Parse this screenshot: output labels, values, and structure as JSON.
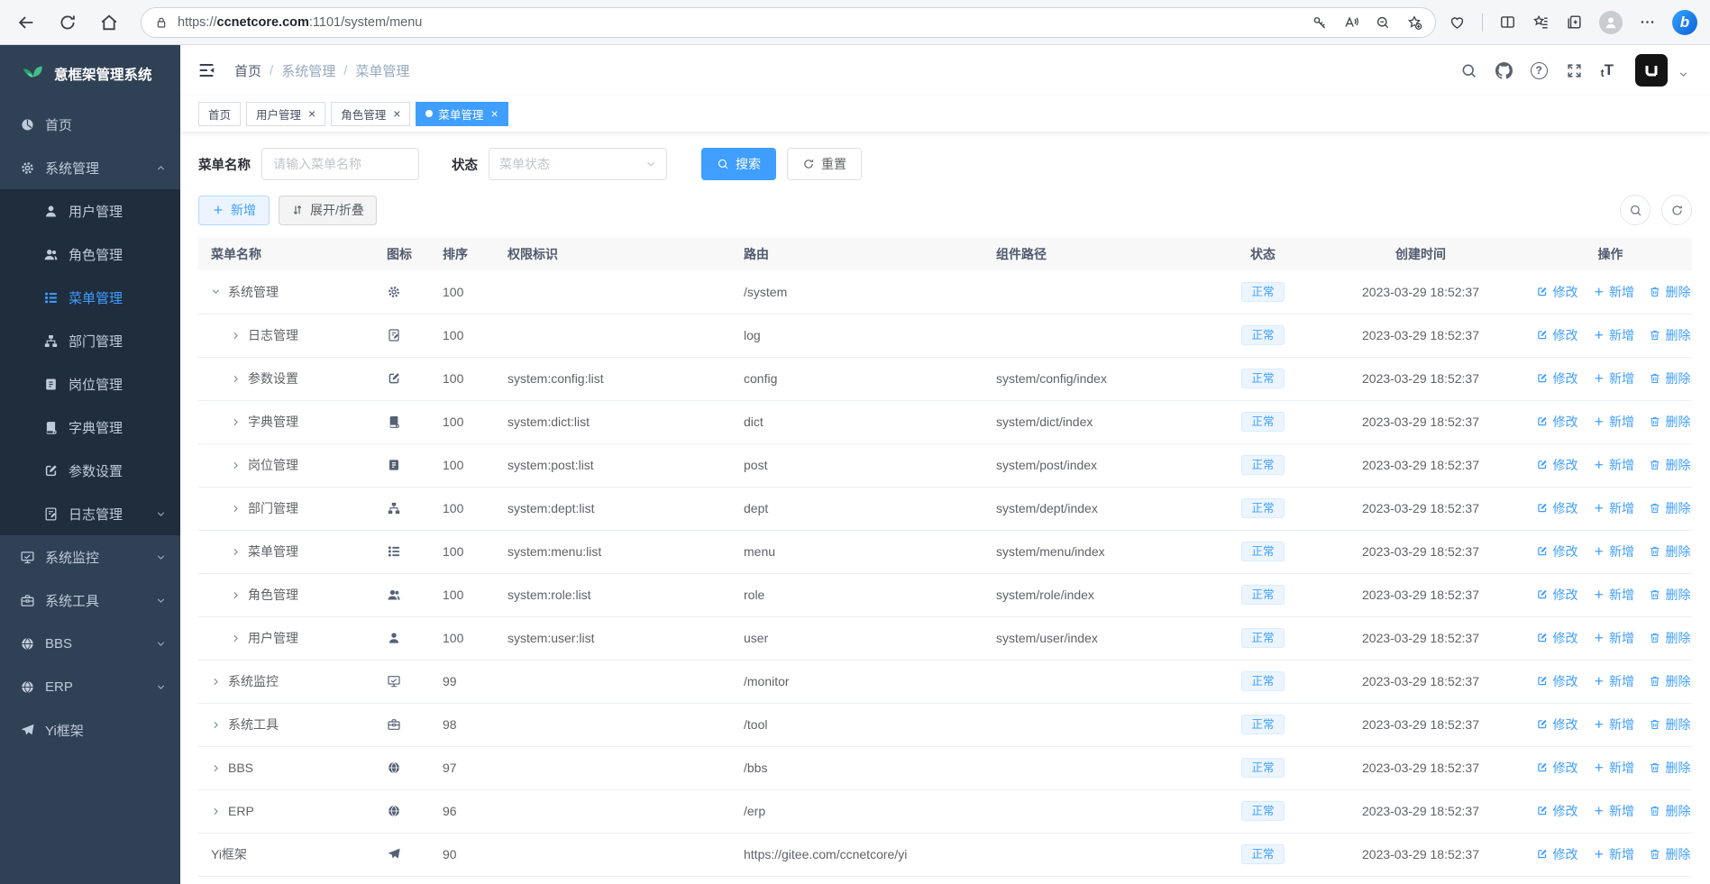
{
  "browser": {
    "url": "https://ccnetcore.com:1101/system/menu",
    "url_scheme": "https://",
    "url_host": "ccnetcore.com",
    "url_path": ":1101/system/menu"
  },
  "sidebar": {
    "logo_title": "意框架管理系统",
    "items": [
      {
        "label": "首页",
        "icon": "dashboard",
        "type": "root"
      },
      {
        "label": "系统管理",
        "icon": "gear",
        "type": "root",
        "chevron": "up"
      },
      {
        "label": "用户管理",
        "icon": "user",
        "type": "sub"
      },
      {
        "label": "角色管理",
        "icon": "users",
        "type": "sub"
      },
      {
        "label": "菜单管理",
        "icon": "menu",
        "type": "sub",
        "active": true
      },
      {
        "label": "部门管理",
        "icon": "tree",
        "type": "sub"
      },
      {
        "label": "岗位管理",
        "icon": "badge",
        "type": "sub"
      },
      {
        "label": "字典管理",
        "icon": "dict",
        "type": "sub"
      },
      {
        "label": "参数设置",
        "icon": "edit",
        "type": "sub"
      },
      {
        "label": "日志管理",
        "icon": "log",
        "type": "sub",
        "chevron": "down"
      },
      {
        "label": "系统监控",
        "icon": "monitor",
        "type": "root",
        "chevron": "down"
      },
      {
        "label": "系统工具",
        "icon": "toolbox",
        "type": "root",
        "chevron": "down"
      },
      {
        "label": "BBS",
        "icon": "globe",
        "type": "root",
        "chevron": "down"
      },
      {
        "label": "ERP",
        "icon": "globe",
        "type": "root",
        "chevron": "down"
      },
      {
        "label": "Yi框架",
        "icon": "plane",
        "type": "root"
      }
    ]
  },
  "header": {
    "breadcrumb": [
      "首页",
      "系统管理",
      "菜单管理"
    ]
  },
  "tabs": [
    {
      "label": "首页",
      "closable": false,
      "active": false
    },
    {
      "label": "用户管理",
      "closable": true,
      "active": false
    },
    {
      "label": "角色管理",
      "closable": true,
      "active": false
    },
    {
      "label": "菜单管理",
      "closable": true,
      "active": true
    }
  ],
  "filters": {
    "name_label": "菜单名称",
    "name_placeholder": "请输入菜单名称",
    "status_label": "状态",
    "status_placeholder": "菜单状态",
    "search_button": "搜索",
    "reset_button": "重置"
  },
  "toolbar": {
    "add_button": "新增",
    "expand_button": "展开/折叠"
  },
  "table": {
    "columns": [
      "菜单名称",
      "图标",
      "排序",
      "权限标识",
      "路由",
      "组件路径",
      "状态",
      "创建时间",
      "操作"
    ],
    "actions": {
      "edit": "修改",
      "add": "新增",
      "delete": "删除"
    },
    "rows": [
      {
        "name": "系统管理",
        "icon": "gear",
        "indent": 1,
        "expand": "down",
        "sort": "100",
        "perms": "",
        "route": "/system",
        "component": "",
        "status": "正常",
        "created": "2023-03-29 18:52:37"
      },
      {
        "name": "日志管理",
        "icon": "log",
        "indent": 2,
        "expand": "right",
        "sort": "100",
        "perms": "",
        "route": "log",
        "component": "",
        "status": "正常",
        "created": "2023-03-29 18:52:37"
      },
      {
        "name": "参数设置",
        "icon": "edit",
        "indent": 2,
        "expand": "right",
        "sort": "100",
        "perms": "system:config:list",
        "route": "config",
        "component": "system/config/index",
        "status": "正常",
        "created": "2023-03-29 18:52:37"
      },
      {
        "name": "字典管理",
        "icon": "dict",
        "indent": 2,
        "expand": "right",
        "sort": "100",
        "perms": "system:dict:list",
        "route": "dict",
        "component": "system/dict/index",
        "status": "正常",
        "created": "2023-03-29 18:52:37"
      },
      {
        "name": "岗位管理",
        "icon": "badge",
        "indent": 2,
        "expand": "right",
        "sort": "100",
        "perms": "system:post:list",
        "route": "post",
        "component": "system/post/index",
        "status": "正常",
        "created": "2023-03-29 18:52:37"
      },
      {
        "name": "部门管理",
        "icon": "tree",
        "indent": 2,
        "expand": "right",
        "sort": "100",
        "perms": "system:dept:list",
        "route": "dept",
        "component": "system/dept/index",
        "status": "正常",
        "created": "2023-03-29 18:52:37"
      },
      {
        "name": "菜单管理",
        "icon": "menu",
        "indent": 2,
        "expand": "right",
        "sort": "100",
        "perms": "system:menu:list",
        "route": "menu",
        "component": "system/menu/index",
        "status": "正常",
        "created": "2023-03-29 18:52:37"
      },
      {
        "name": "角色管理",
        "icon": "users",
        "indent": 2,
        "expand": "right",
        "sort": "100",
        "perms": "system:role:list",
        "route": "role",
        "component": "system/role/index",
        "status": "正常",
        "created": "2023-03-29 18:52:37"
      },
      {
        "name": "用户管理",
        "icon": "user",
        "indent": 2,
        "expand": "right",
        "sort": "100",
        "perms": "system:user:list",
        "route": "user",
        "component": "system/user/index",
        "status": "正常",
        "created": "2023-03-29 18:52:37"
      },
      {
        "name": "系统监控",
        "icon": "monitor",
        "indent": 1,
        "expand": "right",
        "sort": "99",
        "perms": "",
        "route": "/monitor",
        "component": "",
        "status": "正常",
        "created": "2023-03-29 18:52:37"
      },
      {
        "name": "系统工具",
        "icon": "toolbox",
        "indent": 1,
        "expand": "right",
        "sort": "98",
        "perms": "",
        "route": "/tool",
        "component": "",
        "status": "正常",
        "created": "2023-03-29 18:52:37"
      },
      {
        "name": "BBS",
        "icon": "globe",
        "indent": 1,
        "expand": "right",
        "sort": "97",
        "perms": "",
        "route": "/bbs",
        "component": "",
        "status": "正常",
        "created": "2023-03-29 18:52:37"
      },
      {
        "name": "ERP",
        "icon": "globe",
        "indent": 1,
        "expand": "right",
        "sort": "96",
        "perms": "",
        "route": "/erp",
        "component": "",
        "status": "正常",
        "created": "2023-03-29 18:52:37"
      },
      {
        "name": "Yi框架",
        "icon": "plane",
        "indent": 1,
        "expand": "none",
        "sort": "90",
        "perms": "",
        "route": "https://gitee.com/ccnetcore/yi",
        "component": "",
        "status": "正常",
        "created": "2023-03-29 18:52:37"
      }
    ]
  },
  "colors": {
    "accent": "#409eff",
    "sidebar_bg": "#304156",
    "sidebar_submenu_bg": "#1f2d3d",
    "sidebar_text": "#bfcbd9",
    "logo_green": "#3fbf8a",
    "tag_bg": "#ecf5ff",
    "tag_border": "#d9ecff",
    "tab_active_bg": "#409eff"
  }
}
